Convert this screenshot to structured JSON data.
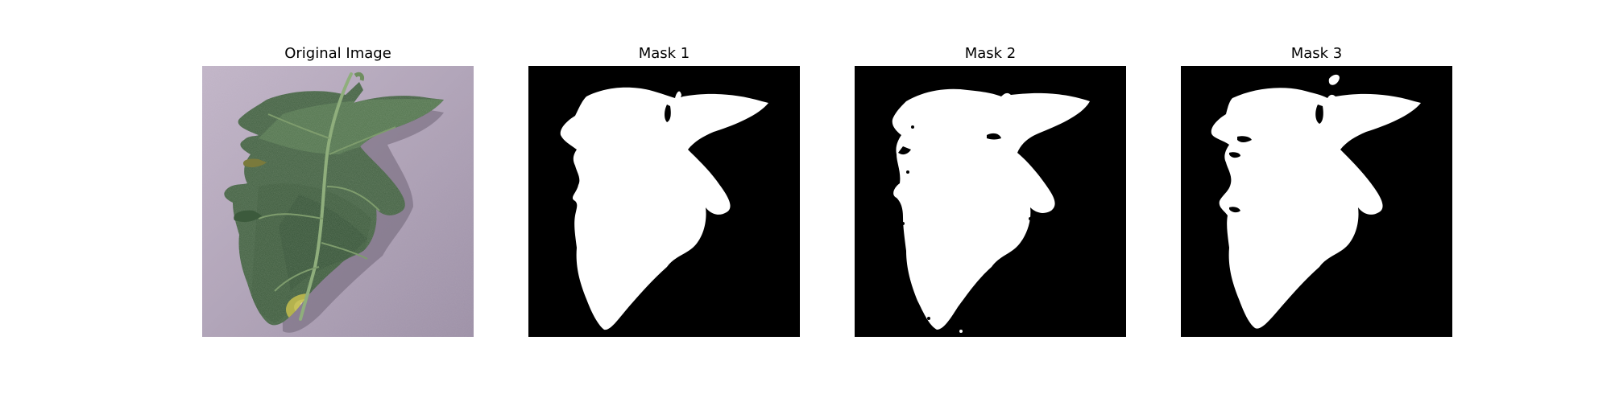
{
  "panels": [
    {
      "title": "Original Image",
      "kind": "photo",
      "subject": "tomato-leaf"
    },
    {
      "title": "Mask 1",
      "kind": "mask"
    },
    {
      "title": "Mask 2",
      "kind": "mask"
    },
    {
      "title": "Mask 3",
      "kind": "mask"
    }
  ],
  "colors": {
    "background": "#ffffff",
    "mask_foreground": "#ffffff",
    "mask_background": "#000000",
    "photo_surface": "#b9abc0",
    "leaf_dark": "#2d4a2f",
    "leaf_mid": "#4c6f48",
    "leaf_light": "#6c8c62",
    "lesion": "#c7c15a"
  }
}
